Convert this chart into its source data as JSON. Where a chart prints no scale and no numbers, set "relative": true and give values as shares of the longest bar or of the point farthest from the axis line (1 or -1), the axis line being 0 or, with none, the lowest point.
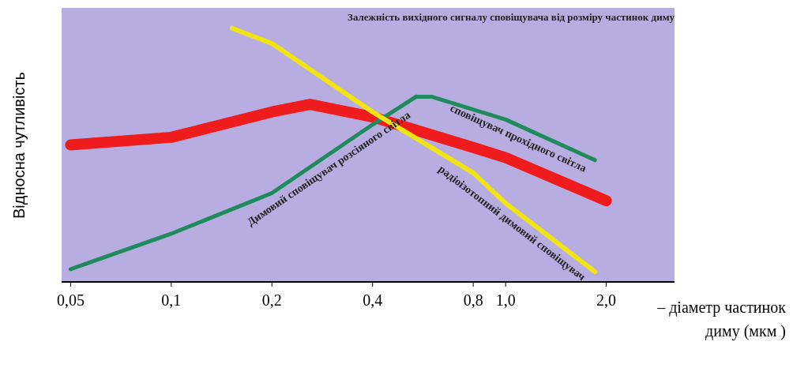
{
  "chart_data": {
    "type": "line",
    "title": "Залежність вихідного сигналу сповіщувача від розміру частинок диму",
    "ylabel": "Відносна чутливість",
    "xlabel": "– діаметр частинок диму (мкм )",
    "relative": true,
    "log": "x",
    "grid": false,
    "legend": false,
    "marker": "none",
    "line_style": "solid",
    "xlim": [
      0.047,
      3.2
    ],
    "xticks": [
      {
        "value": 0.05,
        "label": "0,05"
      },
      {
        "value": 0.1,
        "label": "0,1"
      },
      {
        "value": 0.2,
        "label": "0,2"
      },
      {
        "value": 0.4,
        "label": "0,4"
      },
      {
        "value": 0.8,
        "label": "0,8"
      },
      {
        "value": 1.0,
        "label": "1,0"
      },
      {
        "value": 2.0,
        "label": "2,0"
      }
    ],
    "series": [
      {
        "color": "#ee1c1c",
        "x": [
          0.05,
          0.1,
          0.2,
          0.26,
          0.4,
          0.8,
          1.0,
          2.0
        ],
        "values": [
          0.54,
          0.57,
          0.67,
          0.7,
          0.65,
          0.53,
          0.49,
          0.32
        ]
      },
      {
        "name": "Димовий сповіщувач розсіяного світла",
        "color": "#1f8a5c",
        "x": [
          0.05,
          0.1,
          0.2,
          0.4,
          0.54
        ],
        "values": [
          0.05,
          0.19,
          0.35,
          0.62,
          0.73
        ]
      },
      {
        "name": "сповіщувач прохідного світла",
        "color": "#1f8a5c",
        "x": [
          0.54,
          0.6,
          1.0,
          1.85
        ],
        "values": [
          0.73,
          0.73,
          0.64,
          0.48
        ]
      },
      {
        "name": "радіоізотопний димовий сповіщувач",
        "color": "#f2e313",
        "x": [
          0.152,
          0.2,
          0.4,
          0.8,
          1.0,
          1.85
        ],
        "values": [
          1,
          0.94,
          0.67,
          0.43,
          0.31,
          0.04
        ]
      }
    ]
  }
}
